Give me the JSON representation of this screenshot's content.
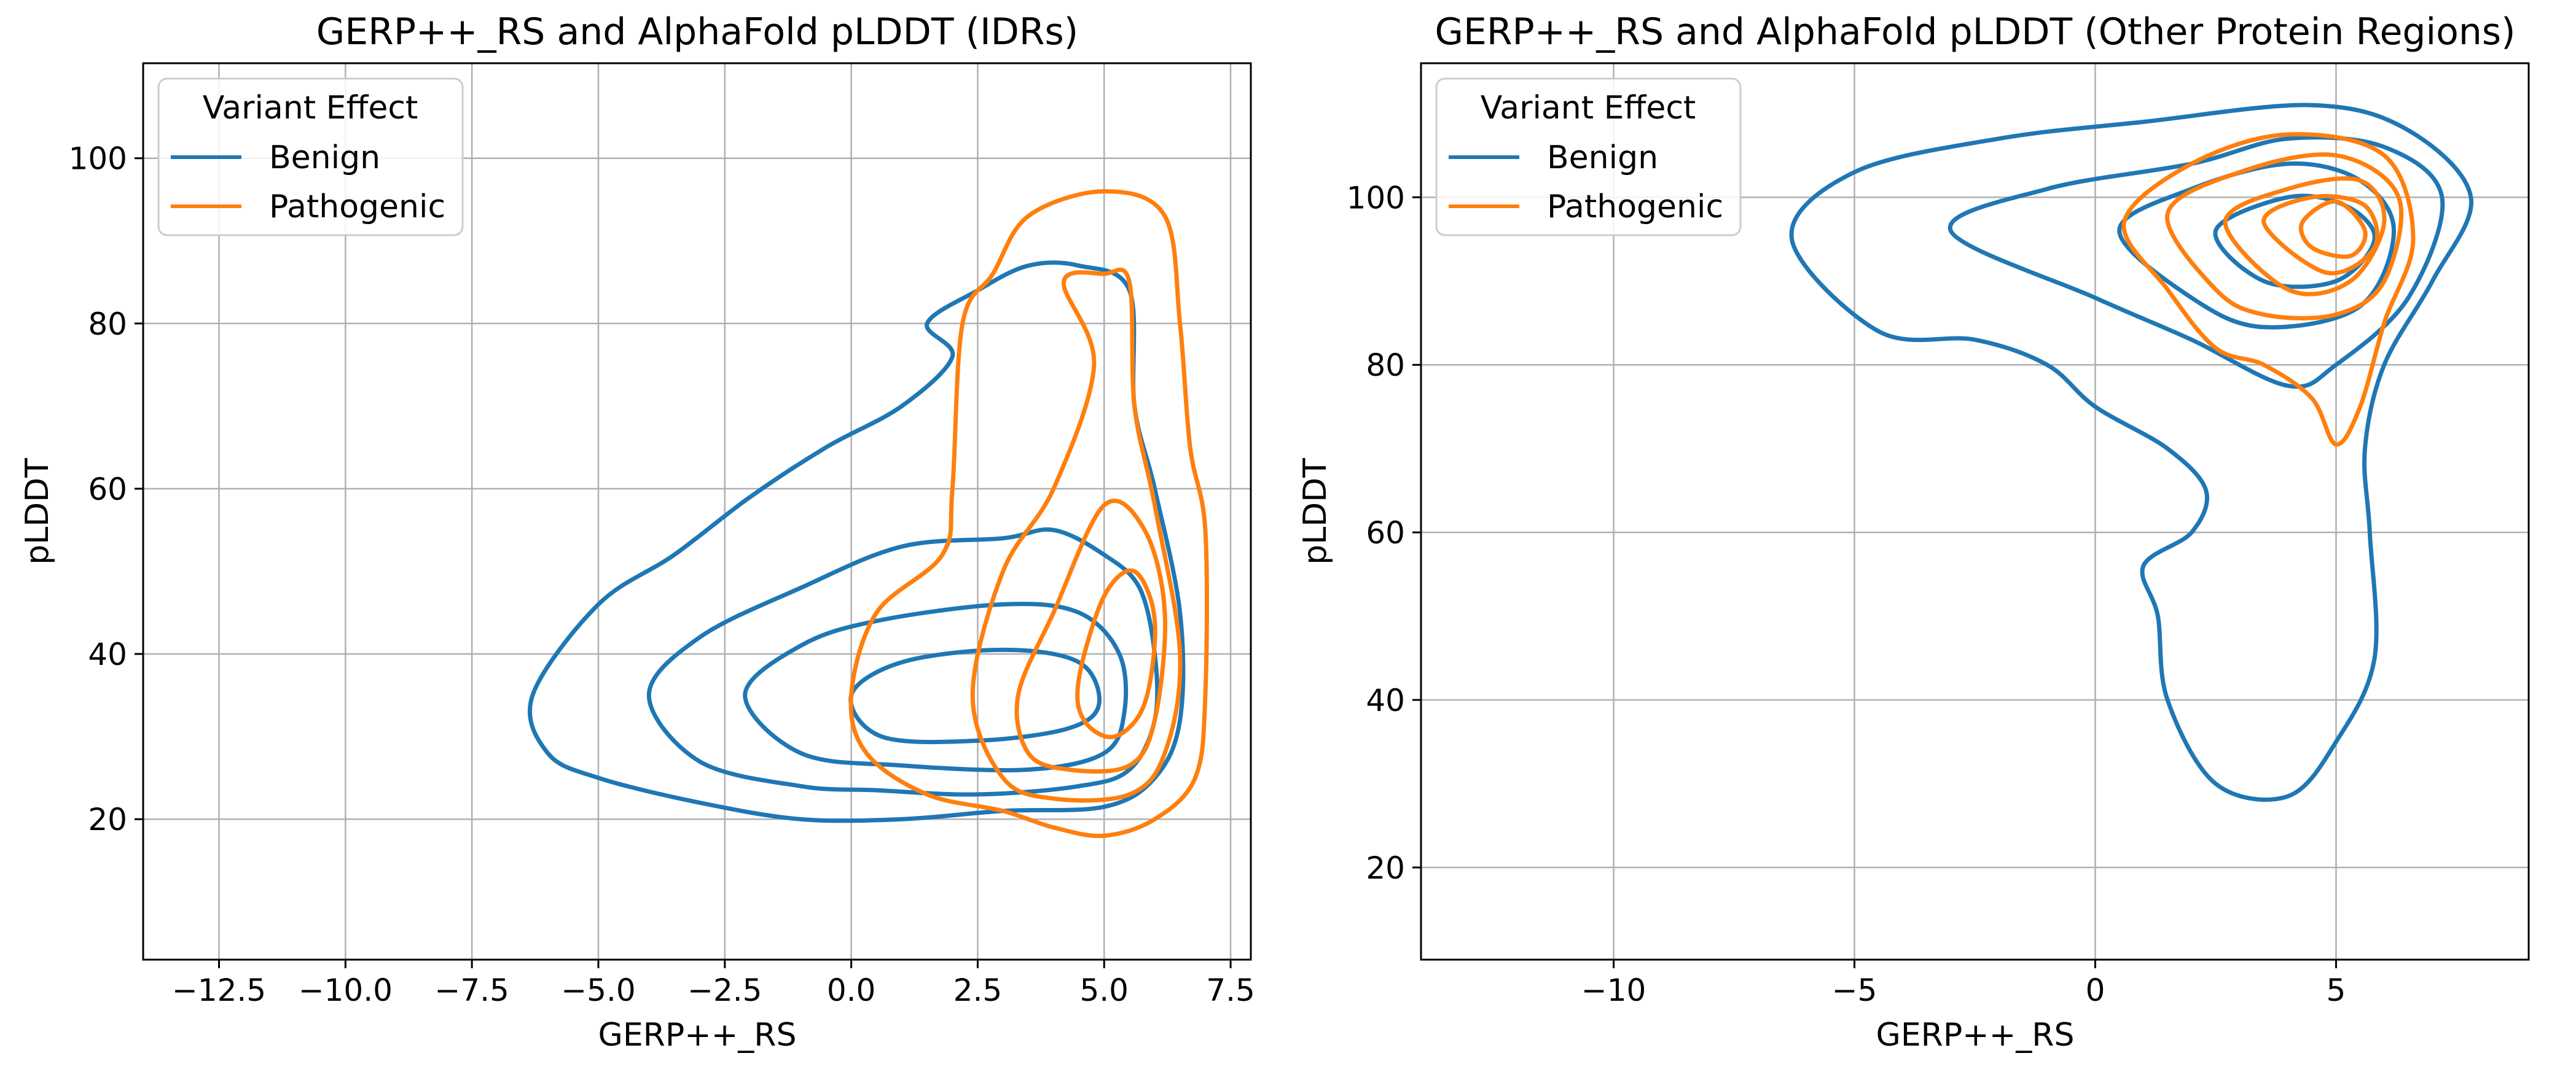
{
  "chart_data": [
    {
      "type": "contour",
      "title": "GERP++_RS and AlphaFold pLDDT (IDRs)",
      "xlabel": "GERP++_RS",
      "ylabel": "pLDDT",
      "xlim": [
        -14.0,
        7.9
      ],
      "ylim": [
        3.0,
        111.5
      ],
      "xticks": [
        -12.5,
        -10.0,
        -7.5,
        -5.0,
        -2.5,
        0.0,
        2.5,
        5.0,
        7.5
      ],
      "xtick_labels": [
        "−12.5",
        "−10.0",
        "−7.5",
        "−5.0",
        "−2.5",
        "0.0",
        "2.5",
        "5.0",
        "7.5"
      ],
      "yticks": [
        20,
        40,
        60,
        80,
        100
      ],
      "ytick_labels": [
        "20",
        "40",
        "60",
        "80",
        "100"
      ],
      "grid": true,
      "legend": {
        "title": "Variant Effect",
        "position": "top-left",
        "entries": [
          {
            "label": "Benign",
            "color": "#1f77b4"
          },
          {
            "label": "Pathogenic",
            "color": "#ff7f0e"
          }
        ]
      },
      "series": [
        {
          "name": "Benign",
          "color": "#1f77b4",
          "contours": [
            [
              [
                -6.3,
                35
              ],
              [
                -5.0,
                46
              ],
              [
                -3.5,
                52
              ],
              [
                -2.0,
                59
              ],
              [
                -0.5,
                65
              ],
              [
                1.0,
                70
              ],
              [
                2.0,
                76
              ],
              [
                1.5,
                80
              ],
              [
                2.5,
                84
              ],
              [
                3.5,
                87
              ],
              [
                4.5,
                87
              ],
              [
                5.5,
                84
              ],
              [
                5.6,
                70
              ],
              [
                6.0,
                60
              ],
              [
                6.5,
                45
              ],
              [
                6.5,
                32
              ],
              [
                6.0,
                25
              ],
              [
                5.0,
                21.5
              ],
              [
                3.0,
                21
              ],
              [
                1.0,
                20
              ],
              [
                -1.0,
                20
              ],
              [
                -3.0,
                22
              ],
              [
                -5.0,
                25
              ],
              [
                -6.0,
                28
              ],
              [
                -6.3,
                35
              ]
            ],
            [
              [
                -4.0,
                35
              ],
              [
                -3.0,
                42
              ],
              [
                -1.0,
                48
              ],
              [
                1.0,
                53
              ],
              [
                3.0,
                54
              ],
              [
                4.0,
                55
              ],
              [
                5.0,
                52
              ],
              [
                5.7,
                48
              ],
              [
                6.0,
                40
              ],
              [
                6.0,
                32
              ],
              [
                5.5,
                26
              ],
              [
                4.5,
                24
              ],
              [
                2.5,
                23
              ],
              [
                0.5,
                23.5
              ],
              [
                -1.0,
                24
              ],
              [
                -3.0,
                27
              ],
              [
                -4.0,
                35
              ]
            ],
            [
              [
                -2.1,
                35
              ],
              [
                -1.0,
                41
              ],
              [
                0.5,
                44
              ],
              [
                3.0,
                46
              ],
              [
                4.5,
                45
              ],
              [
                5.3,
                40
              ],
              [
                5.4,
                33
              ],
              [
                5.0,
                28
              ],
              [
                3.5,
                26
              ],
              [
                1.0,
                26.5
              ],
              [
                -1.0,
                28
              ],
              [
                -2.1,
                35
              ]
            ],
            [
              [
                0.0,
                35
              ],
              [
                1.0,
                39
              ],
              [
                3.0,
                40.5
              ],
              [
                4.5,
                39
              ],
              [
                4.9,
                34
              ],
              [
                4.3,
                31
              ],
              [
                2.5,
                29.5
              ],
              [
                0.6,
                30
              ],
              [
                0.0,
                35
              ]
            ]
          ]
        },
        {
          "name": "Pathogenic",
          "color": "#ff7f0e",
          "contours": [
            [
              [
                0.0,
                35
              ],
              [
                0.5,
                45
              ],
              [
                1.8,
                52
              ],
              [
                2.0,
                60
              ],
              [
                2.2,
                80
              ],
              [
                2.8,
                86
              ],
              [
                3.5,
                93
              ],
              [
                5.0,
                96
              ],
              [
                6.2,
                93
              ],
              [
                6.5,
                80
              ],
              [
                6.7,
                65
              ],
              [
                7.0,
                55
              ],
              [
                7.0,
                35
              ],
              [
                6.8,
                25
              ],
              [
                6.0,
                20
              ],
              [
                5.0,
                18
              ],
              [
                4.0,
                19
              ],
              [
                3.0,
                21
              ],
              [
                1.5,
                23
              ],
              [
                0.3,
                28
              ],
              [
                0.0,
                35
              ]
            ],
            [
              [
                2.4,
                35
              ],
              [
                3.0,
                50
              ],
              [
                4.0,
                60
              ],
              [
                4.8,
                75
              ],
              [
                4.2,
                85
              ],
              [
                5.0,
                86
              ],
              [
                5.5,
                85
              ],
              [
                5.6,
                70
              ],
              [
                6.0,
                58
              ],
              [
                6.5,
                40
              ],
              [
                6.2,
                28
              ],
              [
                5.5,
                23
              ],
              [
                4.0,
                22.5
              ],
              [
                3.0,
                25
              ],
              [
                2.4,
                35
              ]
            ],
            [
              [
                3.3,
                35
              ],
              [
                4.0,
                45
              ],
              [
                5.0,
                58
              ],
              [
                5.8,
                55
              ],
              [
                6.2,
                45
              ],
              [
                6.0,
                32
              ],
              [
                5.5,
                26.5
              ],
              [
                4.3,
                26
              ],
              [
                3.5,
                28
              ],
              [
                3.3,
                35
              ]
            ],
            [
              [
                4.5,
                37
              ],
              [
                5.0,
                47
              ],
              [
                5.6,
                50
              ],
              [
                6.0,
                44
              ],
              [
                5.8,
                34
              ],
              [
                5.2,
                30
              ],
              [
                4.6,
                32
              ],
              [
                4.5,
                37
              ]
            ]
          ]
        }
      ]
    },
    {
      "type": "contour",
      "title": "GERP++_RS and AlphaFold pLDDT (Other Protein Regions)",
      "xlabel": "GERP++_RS",
      "ylabel": "pLDDT",
      "xlim": [
        -14.0,
        9.0
      ],
      "ylim": [
        9.0,
        116.0
      ],
      "xticks": [
        -10,
        -5,
        0,
        5
      ],
      "xtick_labels": [
        "−10",
        "−5",
        "0",
        "5"
      ],
      "yticks": [
        20,
        40,
        60,
        80,
        100
      ],
      "ytick_labels": [
        "20",
        "40",
        "60",
        "80",
        "100"
      ],
      "grid": true,
      "legend": {
        "title": "Variant Effect",
        "position": "top-left",
        "entries": [
          {
            "label": "Benign",
            "color": "#1f77b4"
          },
          {
            "label": "Pathogenic",
            "color": "#ff7f0e"
          }
        ]
      },
      "series": [
        {
          "name": "Benign",
          "color": "#1f77b4",
          "contours": [
            [
              [
                -6.3,
                95
              ],
              [
                -5.0,
                103
              ],
              [
                -2.0,
                107
              ],
              [
                1.0,
                109
              ],
              [
                4.5,
                111
              ],
              [
                6.5,
                108
              ],
              [
                7.8,
                100
              ],
              [
                7.0,
                90
              ],
              [
                6.0,
                80
              ],
              [
                5.6,
                70
              ],
              [
                5.7,
                60
              ],
              [
                5.8,
                45
              ],
              [
                5.0,
                35
              ],
              [
                4.0,
                28.5
              ],
              [
                2.5,
                30
              ],
              [
                1.5,
                40
              ],
              [
                1.3,
                50
              ],
              [
                1.0,
                56
              ],
              [
                2.0,
                60
              ],
              [
                2.3,
                65
              ],
              [
                1.5,
                70
              ],
              [
                0.0,
                75
              ],
              [
                -1.0,
                80
              ],
              [
                -2.5,
                83
              ],
              [
                -4.5,
                84
              ],
              [
                -6.3,
                95
              ]
            ],
            [
              [
                -3.0,
                96
              ],
              [
                -1.0,
                101
              ],
              [
                2.0,
                104
              ],
              [
                4.0,
                107
              ],
              [
                6.0,
                106
              ],
              [
                7.2,
                100
              ],
              [
                6.5,
                88
              ],
              [
                5.0,
                80
              ],
              [
                4.0,
                77.5
              ],
              [
                2.0,
                83
              ],
              [
                0.0,
                88
              ],
              [
                -3.0,
                96
              ]
            ],
            [
              [
                0.5,
                96
              ],
              [
                2.0,
                101
              ],
              [
                4.0,
                104
              ],
              [
                5.5,
                102
              ],
              [
                6.2,
                96
              ],
              [
                5.5,
                87
              ],
              [
                3.5,
                84.5
              ],
              [
                2.0,
                88
              ],
              [
                0.5,
                96
              ]
            ],
            [
              [
                2.5,
                96
              ],
              [
                4.0,
                100
              ],
              [
                5.2,
                99
              ],
              [
                5.8,
                95
              ],
              [
                5.0,
                90
              ],
              [
                3.5,
                90
              ],
              [
                2.5,
                96
              ]
            ]
          ]
        },
        {
          "name": "Pathogenic",
          "color": "#ff7f0e",
          "contours": [
            [
              [
                0.6,
                97
              ],
              [
                2.0,
                104
              ],
              [
                4.0,
                107.5
              ],
              [
                6.0,
                105
              ],
              [
                6.6,
                95
              ],
              [
                6.0,
                85
              ],
              [
                5.5,
                75
              ],
              [
                5.0,
                70.5
              ],
              [
                4.5,
                76
              ],
              [
                3.5,
                80
              ],
              [
                2.5,
                82
              ],
              [
                1.5,
                89
              ],
              [
                0.6,
                97
              ]
            ],
            [
              [
                1.5,
                98
              ],
              [
                3.0,
                103
              ],
              [
                5.0,
                105
              ],
              [
                6.3,
                100
              ],
              [
                6.0,
                90
              ],
              [
                5.0,
                86
              ],
              [
                3.5,
                86
              ],
              [
                2.5,
                89
              ],
              [
                1.5,
                98
              ]
            ],
            [
              [
                2.7,
                97
              ],
              [
                4.0,
                101
              ],
              [
                5.5,
                102
              ],
              [
                6.0,
                97
              ],
              [
                5.3,
                90
              ],
              [
                4.0,
                89
              ],
              [
                2.7,
                97
              ]
            ],
            [
              [
                3.5,
                97
              ],
              [
                4.5,
                100
              ],
              [
                5.6,
                99
              ],
              [
                5.8,
                94
              ],
              [
                4.8,
                91
              ],
              [
                3.5,
                97
              ]
            ],
            [
              [
                4.3,
                97
              ],
              [
                5.0,
                99.5
              ],
              [
                5.6,
                96
              ],
              [
                5.3,
                93
              ],
              [
                4.5,
                94
              ],
              [
                4.3,
                97
              ]
            ]
          ]
        }
      ]
    }
  ]
}
